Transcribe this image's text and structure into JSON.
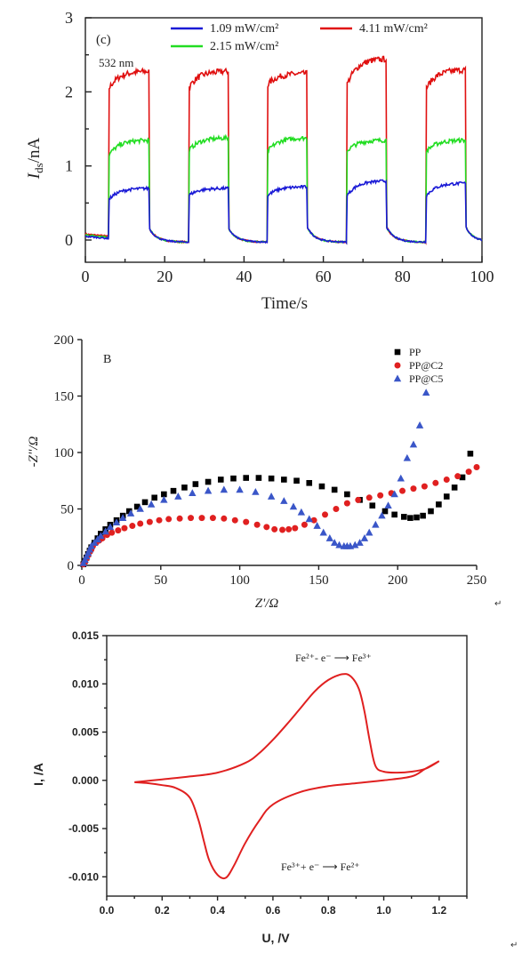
{
  "chart_data": [
    {
      "type": "line",
      "panel_label": "(c)",
      "annotation": "532 nm",
      "xlabel": "Time/s",
      "ylabel_main": "I",
      "ylabel_sub": "ds",
      "ylabel_unit": "/nA",
      "xlim": [
        0,
        100
      ],
      "ylim": [
        -0.3,
        3
      ],
      "xticks": [
        "0",
        "20",
        "40",
        "60",
        "80",
        "100"
      ],
      "yticks": [
        "0",
        "1",
        "2",
        "3"
      ],
      "on_intervals": [
        [
          6,
          16
        ],
        [
          26,
          36
        ],
        [
          46,
          56
        ],
        [
          66,
          76
        ],
        [
          86,
          96
        ]
      ],
      "dark_level": 0.02,
      "series": [
        {
          "name": "1.09 mW/cm²",
          "color": "#1a1ad6",
          "start": [
            0.55,
            0.6,
            0.6,
            0.6,
            0.6
          ],
          "end": [
            0.7,
            0.7,
            0.72,
            0.8,
            0.77
          ]
        },
        {
          "name": "2.15 mW/cm²",
          "color": "#22dd22",
          "start": [
            1.15,
            1.2,
            1.2,
            1.2,
            1.2
          ],
          "end": [
            1.35,
            1.38,
            1.38,
            1.35,
            1.35
          ]
        },
        {
          "name": "4.11 mW/cm²",
          "color": "#e01010",
          "start": [
            2.05,
            2.05,
            2.1,
            2.1,
            2.05
          ],
          "end": [
            2.28,
            2.28,
            2.25,
            2.45,
            2.3
          ]
        }
      ]
    },
    {
      "type": "scatter",
      "panel_label": "B",
      "xlabel": "Z'/Ω",
      "ylabel": "-Z''/Ω",
      "xlim": [
        0,
        250
      ],
      "ylim": [
        0,
        200
      ],
      "xticks": [
        "0",
        "50",
        "100",
        "150",
        "200",
        "250"
      ],
      "yticks": [
        "0",
        "50",
        "100",
        "150",
        "200"
      ],
      "series": [
        {
          "name": "PP",
          "marker": "square",
          "color": "#000000",
          "x": [
            1,
            2,
            3,
            4,
            5,
            6,
            8,
            10,
            12,
            15,
            18,
            22,
            26,
            30,
            35,
            40,
            46,
            52,
            58,
            65,
            72,
            80,
            88,
            96,
            104,
            112,
            120,
            128,
            136,
            144,
            152,
            160,
            168,
            176,
            184,
            192,
            198,
            204,
            208,
            212,
            216,
            221,
            226,
            231,
            236,
            241,
            246
          ],
          "y": [
            1,
            4,
            7,
            10,
            13,
            16,
            20,
            24,
            28,
            32,
            36,
            40,
            44,
            48,
            52,
            56,
            60,
            63,
            66,
            69,
            72,
            74,
            76,
            77,
            77.5,
            77.5,
            77,
            76,
            75,
            73,
            70,
            67,
            63,
            58,
            53,
            48,
            45,
            43,
            42,
            42.5,
            44,
            48,
            54,
            61,
            69,
            78,
            99
          ]
        },
        {
          "name": "PP@C2",
          "marker": "circle",
          "color": "#e02020",
          "x": [
            1,
            2,
            3,
            4,
            5,
            6,
            7,
            9,
            11,
            13,
            16,
            19,
            23,
            27,
            32,
            37,
            43,
            49,
            55,
            62,
            69,
            76,
            83,
            90,
            97,
            104,
            111,
            117,
            122,
            127,
            131,
            135,
            141,
            147,
            154,
            161,
            168,
            175,
            182,
            189,
            196,
            203,
            210,
            217,
            224,
            231,
            238,
            245,
            250
          ],
          "y": [
            1,
            3,
            6,
            9,
            12,
            14,
            17,
            20,
            22,
            24,
            27,
            29,
            31,
            33,
            35,
            37,
            38.5,
            40,
            41,
            41.5,
            42,
            42,
            42,
            41.5,
            40,
            38.5,
            36,
            34,
            32,
            31.5,
            32,
            33,
            36,
            40,
            45,
            50,
            55,
            58,
            60,
            62,
            64,
            66,
            68,
            70,
            73,
            76,
            79,
            83,
            87
          ]
        },
        {
          "name": "PP@C5",
          "marker": "triangle",
          "color": "#3a56c8",
          "x": [
            1,
            2,
            3,
            4,
            5,
            6,
            8,
            10,
            12,
            15,
            18,
            22,
            26,
            31,
            37,
            44,
            52,
            61,
            70,
            80,
            90,
            100,
            110,
            120,
            128,
            134,
            139,
            144,
            149,
            153,
            157,
            160,
            163,
            166,
            168,
            170,
            173,
            176,
            179,
            182,
            186,
            190,
            194,
            198,
            202,
            206,
            210,
            214,
            218
          ],
          "y": [
            2,
            5,
            8,
            11,
            14,
            17,
            20,
            23,
            26,
            30,
            34,
            38,
            42,
            46,
            50,
            54,
            58,
            61,
            64,
            66,
            67,
            67,
            65,
            61,
            57,
            52,
            47,
            41,
            35,
            29,
            24,
            20,
            18,
            17,
            17,
            17,
            18,
            20,
            24,
            29,
            36,
            44,
            53,
            63,
            77,
            95,
            107,
            124,
            153
          ]
        }
      ]
    },
    {
      "type": "line",
      "xlabel": "U, /V",
      "ylabel": "I, /A",
      "xlim": [
        0,
        1.3
      ],
      "ylim": [
        -0.012,
        0.015
      ],
      "xticks": [
        "0.0",
        "0.2",
        "0.4",
        "0.6",
        "0.8",
        "1.0",
        "1.2"
      ],
      "yticks": [
        "-0.010",
        "-0.005",
        "0.000",
        "0.005",
        "0.010",
        "0.015"
      ],
      "annotation_oxidation": "Fe²⁺- e⁻ ⟶ Fe³⁺",
      "annotation_reduction": "Fe³⁺+ e⁻ ⟶ Fe²⁺",
      "color": "#e02020",
      "x": [
        0.1,
        0.2,
        0.3,
        0.4,
        0.5,
        0.55,
        0.6,
        0.65,
        0.7,
        0.75,
        0.8,
        0.85,
        0.88,
        0.91,
        0.93,
        0.95,
        0.97,
        1.0,
        1.05,
        1.1,
        1.15,
        1.2,
        1.15,
        1.1,
        1.0,
        0.9,
        0.8,
        0.7,
        0.6,
        0.55,
        0.5,
        0.46,
        0.43,
        0.4,
        0.37,
        0.35,
        0.33,
        0.3,
        0.25,
        0.2,
        0.15,
        0.1
      ],
      "y": [
        -0.0002,
        0.0001,
        0.0004,
        0.0008,
        0.0018,
        0.0028,
        0.0042,
        0.0058,
        0.0075,
        0.0092,
        0.0104,
        0.011,
        0.0108,
        0.0095,
        0.0072,
        0.004,
        0.0015,
        0.0009,
        0.0008,
        0.0009,
        0.0012,
        0.002,
        0.0012,
        0.0004,
        0.0,
        -0.0003,
        -0.0006,
        -0.0012,
        -0.0025,
        -0.0042,
        -0.0065,
        -0.0088,
        -0.0101,
        -0.0098,
        -0.0083,
        -0.0062,
        -0.004,
        -0.0018,
        -0.0008,
        -0.0005,
        -0.0003,
        -0.0002
      ]
    }
  ]
}
